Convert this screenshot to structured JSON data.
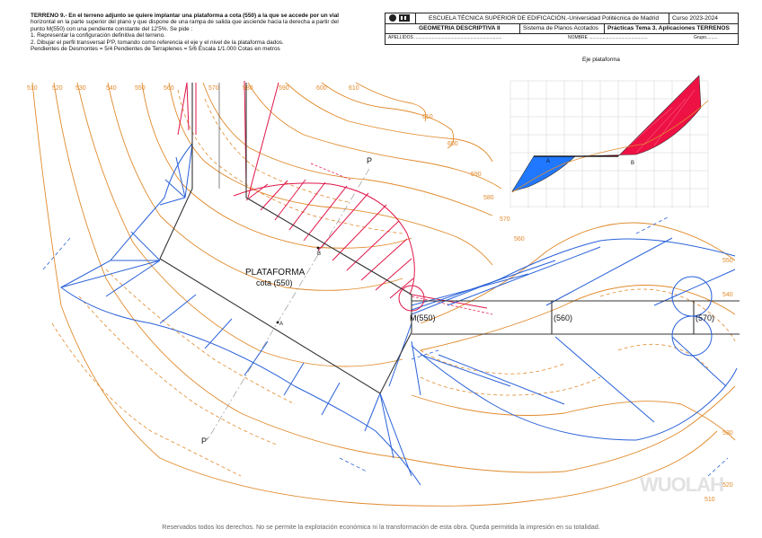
{
  "problem": {
    "lines": [
      "TERRENO 9.- En el terreno adjunto se quiere implantar una plataforma a cota (550) a la que se accede por un vial",
      "horizontal en la parte superior del plano y que dispone de una rampa de salida que asciende hacia la derecha a partir del",
      "punto M(550) con una pendiente constante del 12'5%. Se pide :",
      "1.    Representar la configuración definitiva del terreno.",
      "2.    Dibujar el perfil transversal P'P, tomando como referencia el eje y el nivel de la plataforma dados.",
      "Pendientes de Desmontes = 5/4   Pendientes de Terraplenes = 5/6          Escala 1/1.000          Cotas en metros"
    ]
  },
  "title_block": {
    "school": "ESCUELA TÉCNICA SUPERIOR DE EDIFICACIÓN.-Universidad Politécnica de Madrid",
    "course": "Curso 2023-2024",
    "subject": "GEOMETRIA DESCRIPTIVA II",
    "system": "Sistema de Planos Acotados",
    "practice": "Prácticas Tema 3. Aplicaciones TERRENOS",
    "surname_label": "APELLIDOS",
    "name_label": "NOMBRE",
    "group_label": "Grupo"
  },
  "profile_inset": {
    "title": "Eje plataforma",
    "label_a": "A",
    "label_b": "B"
  },
  "contour_labels_top": [
    "510",
    "520",
    "530",
    "540",
    "550",
    "560",
    "570",
    "580",
    "590",
    "600",
    "610"
  ],
  "contour_labels_right_top": [
    "610",
    "600",
    "590",
    "580",
    "570",
    "560"
  ],
  "contour_labels_right_bottom": [
    "550",
    "540",
    "530",
    "520",
    "510"
  ],
  "platform": {
    "label": "PLATAFORMA",
    "level": "cota (550)",
    "point_a": "A",
    "point_b": "B",
    "point_m": "M(550)",
    "profile_p": "P",
    "profile_p_prime": "P'"
  },
  "ramp_levels": [
    "(560)",
    "(570)"
  ],
  "watermark": "WUOLAH",
  "footer": "Reservados todos los derechos. No se permite la explotación económica ni la transformación de esta obra. Queda permitida la impresión en su totalidad.",
  "colors": {
    "contour": "#e08a2c",
    "fill_side": "#2b62d9",
    "cut_side": "#e0174a",
    "platform_edge": "#333333",
    "section_fill_blue": "#1f78ff",
    "section_fill_red": "#ee1144"
  }
}
